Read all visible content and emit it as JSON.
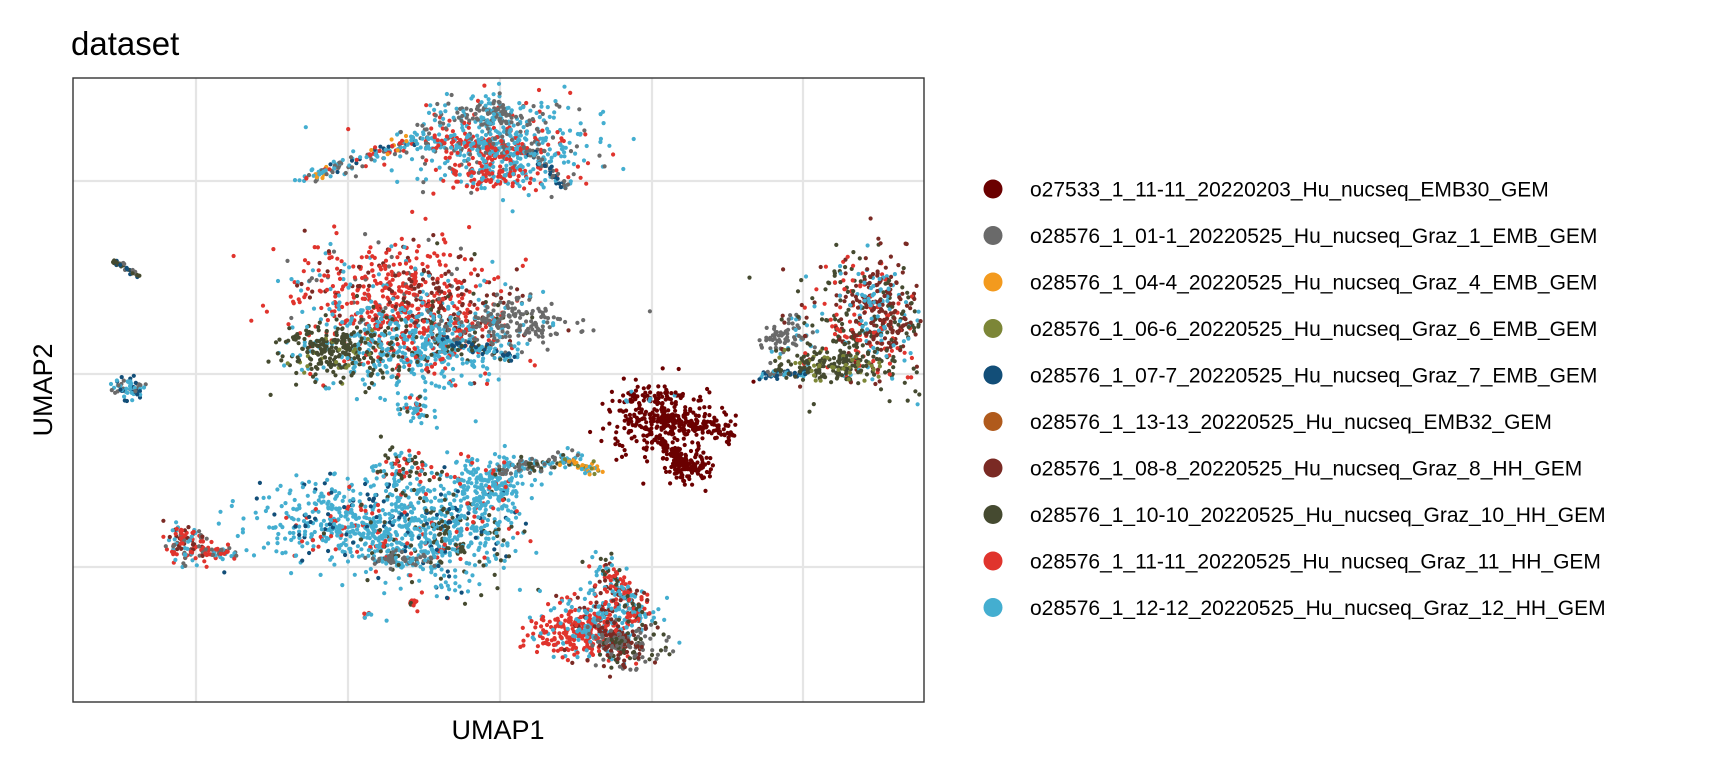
{
  "chart_data": {
    "type": "scatter",
    "title": "dataset",
    "xlabel": "UMAP1",
    "ylabel": "UMAP2",
    "x_ticks_shown": false,
    "y_ticks_shown": false,
    "grid": true,
    "legend_position": "right",
    "series": [
      {
        "name": "o27533_1_11-11_20220203_Hu_nucseq_EMB30_GEM",
        "color": "#6b0000"
      },
      {
        "name": "o28576_1_01-1_20220525_Hu_nucseq_Graz_1_EMB_GEM",
        "color": "#6a6a6a"
      },
      {
        "name": "o28576_1_04-4_20220525_Hu_nucseq_Graz_4_EMB_GEM",
        "color": "#f39a1e"
      },
      {
        "name": "o28576_1_06-6_20220525_Hu_nucseq_Graz_6_EMB_GEM",
        "color": "#7c8637"
      },
      {
        "name": "o28576_1_07-7_20220525_Hu_nucseq_Graz_7_EMB_GEM",
        "color": "#124e78"
      },
      {
        "name": "o28576_1_13-13_20220525_Hu_nucseq_EMB32_GEM",
        "color": "#b05a1c"
      },
      {
        "name": "o28576_1_08-8_20220525_Hu_nucseq_Graz_8_HH_GEM",
        "color": "#7a2a24"
      },
      {
        "name": "o28576_1_10-10_20220525_Hu_nucseq_Graz_10_HH_GEM",
        "color": "#454a30"
      },
      {
        "name": "o28576_1_11-11_20220525_Hu_nucseq_Graz_11_HH_GEM",
        "color": "#e0342d"
      },
      {
        "name": "o28576_1_12-12_20220525_Hu_nucseq_Graz_12_HH_GEM",
        "color": "#44aed0"
      }
    ]
  }
}
